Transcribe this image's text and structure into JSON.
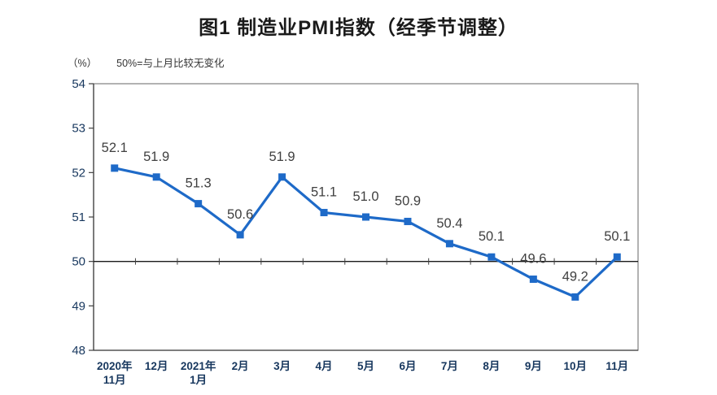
{
  "chart_data": {
    "type": "line",
    "title": "图1 制造业PMI指数（经季节调整）",
    "unit_label": "（%）",
    "note": "50%=与上月比较无变化",
    "categories": [
      [
        "2020年",
        "11月"
      ],
      [
        "12月"
      ],
      [
        "2021年",
        "1月"
      ],
      [
        "2月"
      ],
      [
        "3月"
      ],
      [
        "4月"
      ],
      [
        "5月"
      ],
      [
        "6月"
      ],
      [
        "7月"
      ],
      [
        "8月"
      ],
      [
        "9月"
      ],
      [
        "10月"
      ],
      [
        "11月"
      ]
    ],
    "values": [
      52.1,
      51.9,
      51.3,
      50.6,
      51.9,
      51.1,
      51.0,
      50.9,
      50.4,
      50.1,
      49.6,
      49.2,
      50.1
    ],
    "ylim": [
      48,
      54
    ],
    "ytick_step": 1,
    "yticks": [
      48,
      49,
      50,
      51,
      52,
      53,
      54
    ],
    "baseline_value": 50,
    "grid": "off",
    "legend": "off",
    "colors": {
      "line": "#1E6AC8",
      "marker": "#1E6AC8",
      "axis_labels": "#17375E",
      "data_labels": "#404040",
      "plot_border": "#7F7F7F",
      "axis_line": "#404040",
      "baseline_line": "#1A1A1A",
      "title": "#1A1A1A",
      "note": "#333333"
    }
  }
}
